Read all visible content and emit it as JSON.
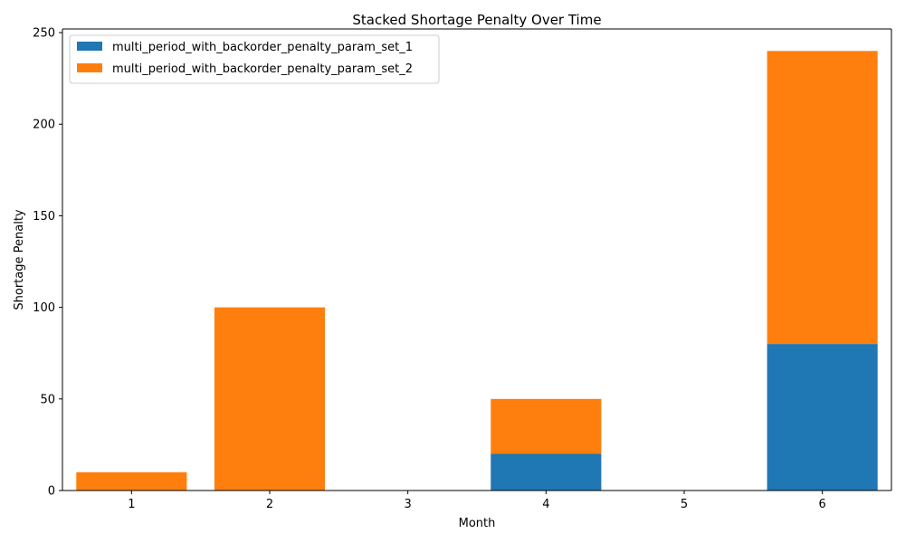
{
  "chart_data": {
    "type": "bar",
    "stacked": true,
    "title": "Stacked Shortage Penalty Over Time",
    "xlabel": "Month",
    "ylabel": "Shortage Penalty",
    "categories": [
      "1",
      "2",
      "3",
      "4",
      "5",
      "6"
    ],
    "series": [
      {
        "name": "multi_period_with_backorder_penalty_param_set_1",
        "color": "#1f77b4",
        "values": [
          0,
          0,
          0,
          20,
          0,
          80
        ]
      },
      {
        "name": "multi_period_with_backorder_penalty_param_set_2",
        "color": "#ff7f0e",
        "values": [
          10,
          100,
          0,
          30,
          0,
          160
        ]
      }
    ],
    "ylim": [
      0,
      252
    ],
    "yticks": [
      0,
      50,
      100,
      150,
      200,
      250
    ],
    "grid": false,
    "legend_position": "top-left"
  }
}
